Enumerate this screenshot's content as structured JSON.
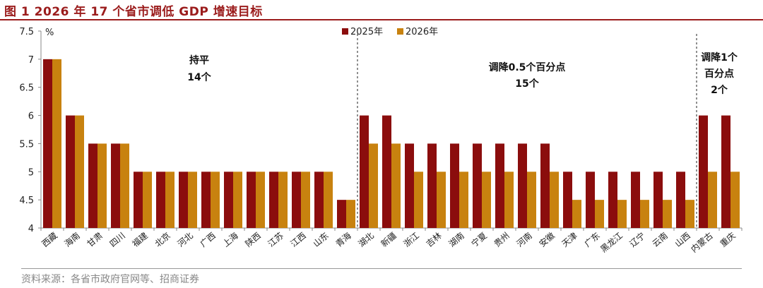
{
  "title": "图 1 2026 年 17 个省市调低 GDP 增速目标",
  "source": "资料来源：各省市政府官网等、招商证券",
  "colors": {
    "title": "#9b1c1c",
    "s2025": "#8b0d0d",
    "s2026": "#c8820f"
  },
  "chart_data": {
    "type": "bar",
    "title": "",
    "ylabel": "%",
    "ylim": [
      4,
      7.5
    ],
    "yticks": [
      "4",
      "4.5",
      "5",
      "5.5",
      "6",
      "6.5",
      "7",
      "7.5"
    ],
    "categories": [
      "西藏",
      "海南",
      "甘肃",
      "四川",
      "福建",
      "北京",
      "河北",
      "广西",
      "上海",
      "陕西",
      "江苏",
      "江西",
      "山东",
      "青海",
      "湖北",
      "新疆",
      "浙江",
      "吉林",
      "湖南",
      "宁夏",
      "贵州",
      "河南",
      "安徽",
      "天津",
      "广东",
      "黑龙江",
      "辽宁",
      "云南",
      "山西",
      "内蒙古",
      "重庆"
    ],
    "series": [
      {
        "name": "2025年",
        "color": "#8b0d0d",
        "values": [
          7,
          6,
          5.5,
          5.5,
          5,
          5,
          5,
          5,
          5,
          5,
          5,
          5,
          5,
          4.5,
          6,
          6,
          5.5,
          5.5,
          5.5,
          5.5,
          5.5,
          5.5,
          5.5,
          5,
          5,
          5,
          5,
          5,
          5,
          6,
          6
        ]
      },
      {
        "name": "2026年",
        "color": "#c8820f",
        "values": [
          7,
          6,
          5.5,
          5.5,
          5,
          5,
          5,
          5,
          5,
          5,
          5,
          5,
          5,
          4.5,
          5.5,
          5.5,
          5,
          5,
          5,
          5,
          5,
          5,
          5,
          4.5,
          4.5,
          4.5,
          4.5,
          4.5,
          4.5,
          5,
          5
        ]
      }
    ],
    "groups": [
      {
        "lines": [
          "持平",
          "14个"
        ],
        "from": 0,
        "to": 13
      },
      {
        "lines": [
          "调降0.5个百分点",
          "15个"
        ],
        "from": 14,
        "to": 28
      },
      {
        "lines": [
          "调降1个",
          "百分点",
          "2个"
        ],
        "from": 29,
        "to": 30
      }
    ],
    "dividers_after": [
      13,
      28
    ],
    "legend_position": "top-center"
  }
}
